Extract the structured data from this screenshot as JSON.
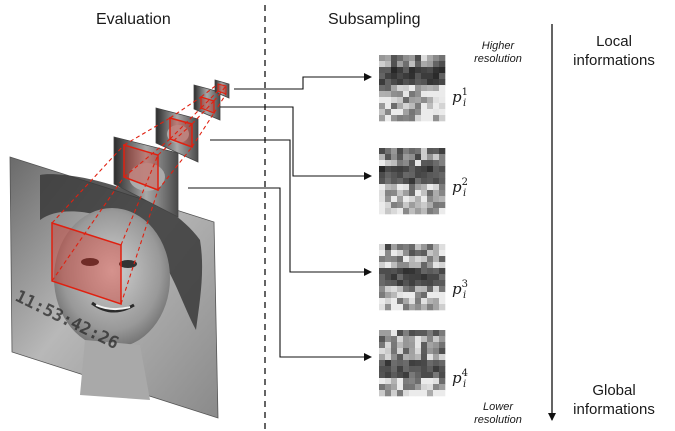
{
  "headers": {
    "evaluation": "Evaluation",
    "subsampling": "Subsampling"
  },
  "resolution_notes": {
    "higher": [
      "Higher",
      "resolution"
    ],
    "lower": [
      "Lower",
      "resolution"
    ]
  },
  "scale_axis": {
    "top": [
      "Local",
      "informations"
    ],
    "bottom": [
      "Global",
      "informations"
    ]
  },
  "pyramid": {
    "timestamp_overlay": "11:53:42:26",
    "highlight_color": "#e02010"
  },
  "patches": [
    {
      "symbol": "p",
      "superscript": "1",
      "subscript": "i"
    },
    {
      "symbol": "p",
      "superscript": "2",
      "subscript": "i"
    },
    {
      "symbol": "p",
      "superscript": "3",
      "subscript": "i"
    },
    {
      "symbol": "p",
      "superscript": "4",
      "subscript": "i"
    }
  ]
}
